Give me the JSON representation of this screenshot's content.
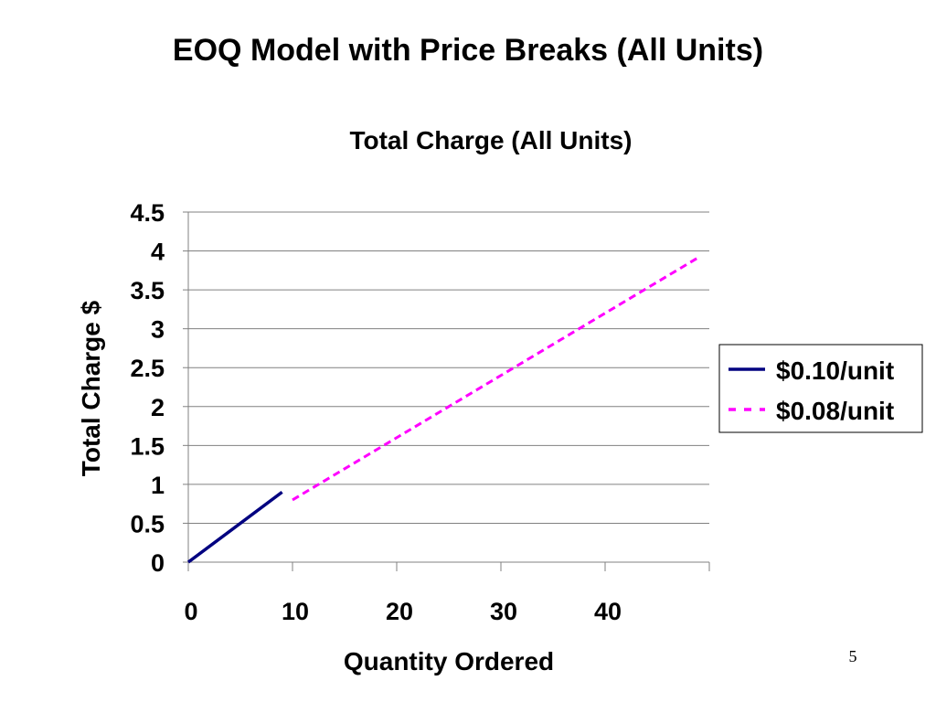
{
  "slide": {
    "title": "EOQ Model with Price Breaks (All Units)",
    "page_number": "5"
  },
  "chart_data": {
    "type": "line",
    "title": "Total Charge (All Units)",
    "xlabel": "Quantity Ordered",
    "ylabel": "Total Charge $",
    "xlim": [
      0,
      50
    ],
    "ylim": [
      0,
      4.5
    ],
    "x_ticks": [
      0,
      10,
      20,
      30,
      40
    ],
    "y_ticks": [
      0,
      0.5,
      1,
      1.5,
      2,
      2.5,
      3,
      3.5,
      4,
      4.5
    ],
    "grid": "horizontal",
    "legend_position": "right",
    "series": [
      {
        "name": "$0.10/unit",
        "color": "#000080",
        "dash": "solid",
        "x": [
          0,
          9
        ],
        "y": [
          0,
          0.9
        ]
      },
      {
        "name": "$0.08/unit",
        "color": "#ff00ff",
        "dash": "dashed",
        "x": [
          10,
          49
        ],
        "y": [
          0.8,
          3.92
        ]
      }
    ]
  }
}
